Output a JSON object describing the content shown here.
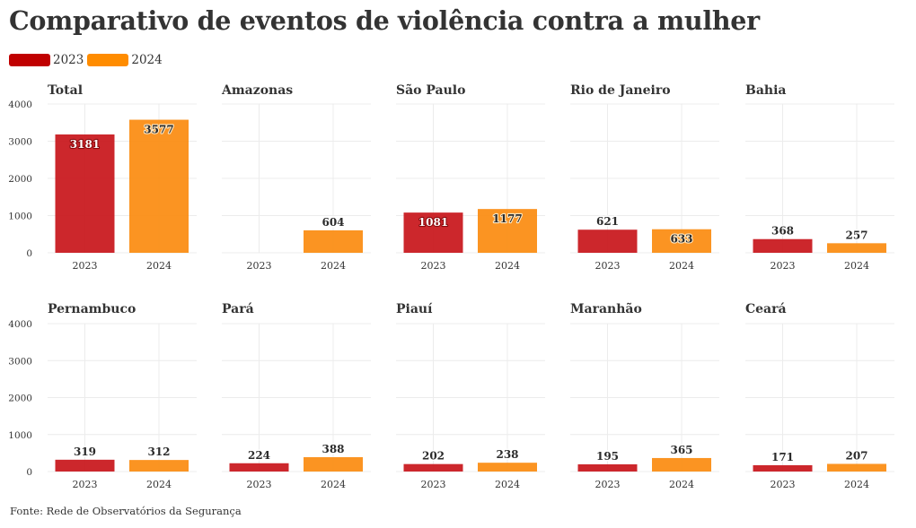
{
  "title": "Comparativo de eventos de violência contra a mulher",
  "source": "Fonte: Rede de Observatórios da Segurança",
  "colors": {
    "2023": "#c8171c",
    "2024": "#fb8c11",
    "label_halo_2023": "#ffffff",
    "label_halo_2024": "#ffe8c4",
    "grid": "#ececec",
    "text": "#333333"
  },
  "legend": [
    {
      "name": "2023",
      "color": "#c00000"
    },
    {
      "name": "2024",
      "color": "#ff8c00"
    }
  ],
  "chart_data": {
    "type": "bar",
    "layout": "small-multiples",
    "categories": [
      "2023",
      "2024"
    ],
    "ylim": [
      0,
      4000
    ],
    "yticks": [
      0,
      1000,
      2000,
      3000,
      4000
    ],
    "grid": true,
    "legend_position": "top-left",
    "panels": [
      {
        "title": "Total",
        "values": [
          3181,
          3577
        ]
      },
      {
        "title": "Amazonas",
        "values": [
          null,
          604
        ]
      },
      {
        "title": "São Paulo",
        "values": [
          1081,
          1177
        ]
      },
      {
        "title": "Rio de Janeiro",
        "values": [
          621,
          633
        ]
      },
      {
        "title": "Bahia",
        "values": [
          368,
          257
        ]
      },
      {
        "title": "Pernambuco",
        "values": [
          319,
          312
        ]
      },
      {
        "title": "Pará",
        "values": [
          224,
          388
        ]
      },
      {
        "title": "Piauí",
        "values": [
          202,
          238
        ]
      },
      {
        "title": "Maranhão",
        "values": [
          195,
          365
        ]
      },
      {
        "title": "Ceará",
        "values": [
          171,
          207
        ]
      }
    ]
  }
}
